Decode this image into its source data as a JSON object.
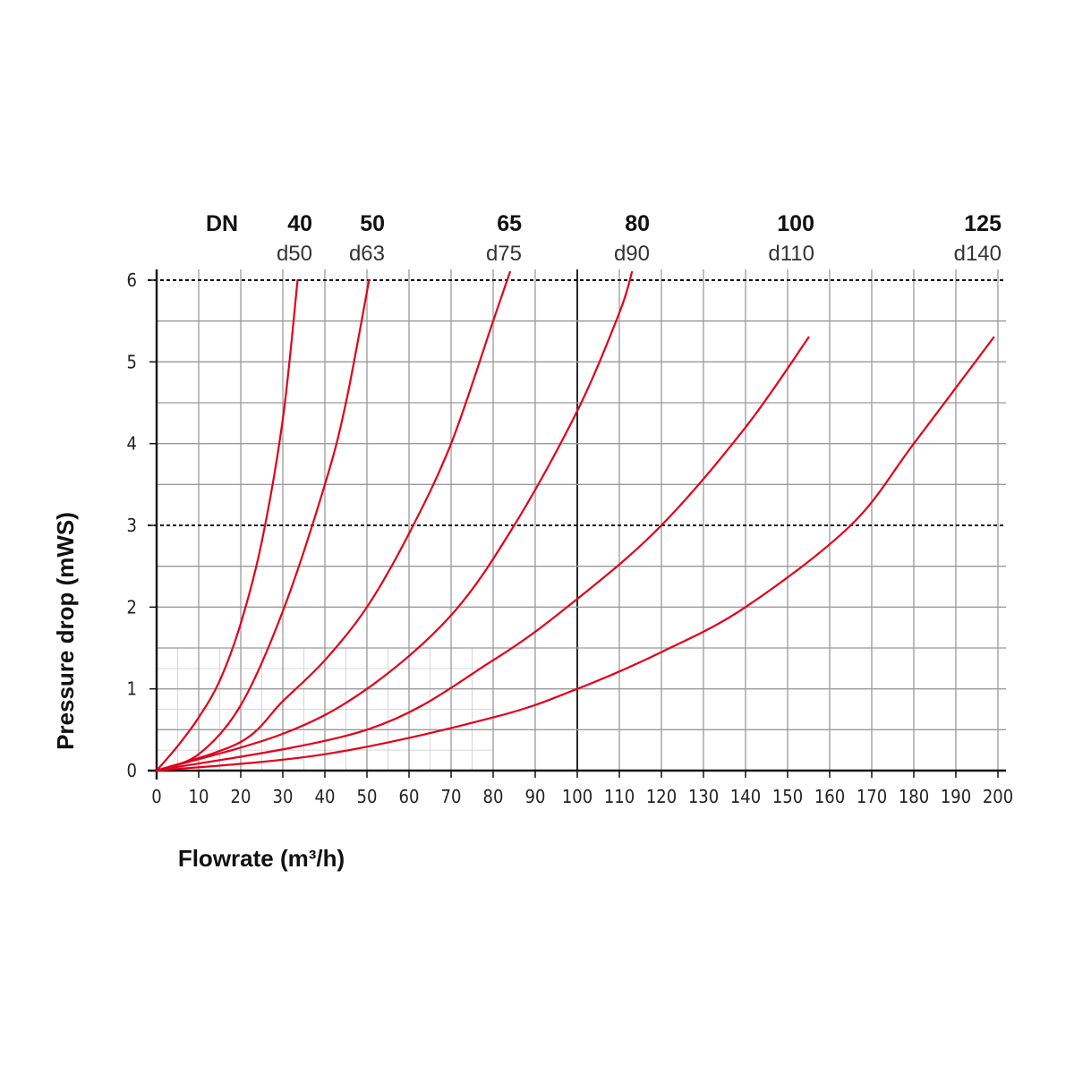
{
  "chart_data": {
    "type": "line",
    "xlabel": "Flowrate (m³/h)",
    "ylabel": "Pressure drop (mWS)",
    "xlim": [
      0,
      200
    ],
    "ylim": [
      0,
      6
    ],
    "x_ticks": [
      0,
      10,
      20,
      30,
      40,
      50,
      60,
      70,
      80,
      90,
      100,
      110,
      120,
      130,
      140,
      150,
      160,
      170,
      180,
      190,
      200
    ],
    "y_ticks": [
      0,
      1,
      2,
      3,
      4,
      5,
      6
    ],
    "reference_lines": [
      3,
      6
    ],
    "grid": true,
    "header_label": "DN",
    "series": [
      {
        "name": "40",
        "sub": "d50",
        "x": [
          0,
          5,
          10,
          15,
          20,
          25,
          30,
          33.5
        ],
        "y": [
          0,
          0.3,
          0.65,
          1.1,
          1.8,
          2.8,
          4.3,
          6.0
        ]
      },
      {
        "name": "50",
        "sub": "d63",
        "x": [
          0,
          10,
          20,
          30,
          40,
          45,
          50.5
        ],
        "y": [
          0,
          0.2,
          0.8,
          1.95,
          3.5,
          4.5,
          6.0
        ]
      },
      {
        "name": "65",
        "sub": "d75",
        "x": [
          0,
          20,
          30,
          40,
          50,
          60,
          70,
          80,
          84
        ],
        "y": [
          0,
          0.35,
          0.85,
          1.35,
          2.0,
          2.9,
          4.0,
          5.5,
          6.1
        ]
      },
      {
        "name": "80",
        "sub": "d90",
        "x": [
          0,
          30,
          50,
          70,
          85,
          100,
          110,
          113
        ],
        "y": [
          0,
          0.45,
          1.0,
          1.9,
          3.0,
          4.4,
          5.6,
          6.1
        ]
      },
      {
        "name": "100",
        "sub": "d110",
        "x": [
          0,
          50,
          80,
          100,
          120,
          140,
          155
        ],
        "y": [
          0,
          0.5,
          1.35,
          2.1,
          3.0,
          4.2,
          5.3
        ]
      },
      {
        "name": "125",
        "sub": "d140",
        "x": [
          0,
          40,
          80,
          100,
          120,
          140,
          165,
          180,
          199
        ],
        "y": [
          0,
          0.2,
          0.65,
          1.0,
          1.45,
          2.0,
          3.0,
          4.0,
          5.3
        ]
      }
    ],
    "line_color": "#e2001a"
  }
}
